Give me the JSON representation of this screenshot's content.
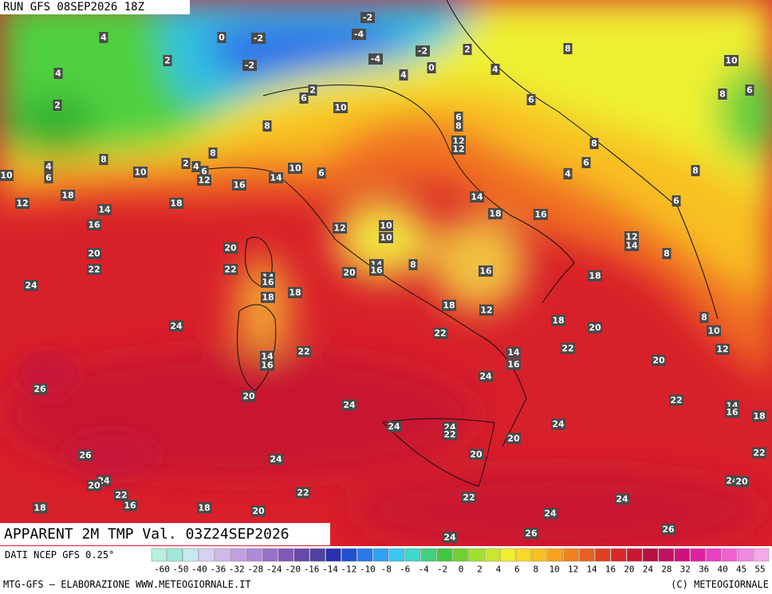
{
  "header": {
    "run": "RUN GFS 08SEP2026 18Z"
  },
  "map": {
    "title": "APPARENT 2M TMP Val. 03Z24SEP2026",
    "labels": [
      -2,
      4,
      0,
      -2,
      -4,
      -2,
      2,
      8,
      2,
      -2,
      -4,
      4,
      4,
      0,
      4,
      10,
      2,
      6,
      2,
      10,
      6,
      8,
      6,
      6,
      8,
      8,
      12,
      12,
      8,
      8,
      8,
      2,
      4,
      6,
      4,
      6,
      10,
      10,
      10,
      6,
      12,
      14,
      16,
      4,
      6,
      8,
      18,
      12,
      18,
      14,
      14,
      16,
      6,
      18,
      16,
      10,
      10,
      12,
      12,
      14,
      20,
      20,
      8,
      14,
      16,
      8,
      22,
      22,
      14,
      16,
      20,
      16,
      18,
      24,
      18,
      18,
      18,
      12,
      18,
      24,
      22,
      20,
      8,
      10,
      22,
      14,
      16,
      22,
      12,
      14,
      16,
      24,
      20,
      26,
      20,
      24,
      22,
      14,
      16,
      18,
      24,
      24,
      22,
      24,
      20,
      20,
      26,
      24,
      22,
      24,
      20,
      24,
      20,
      22,
      22,
      16,
      22,
      24,
      18,
      18,
      20,
      24,
      26,
      26,
      24
    ]
  },
  "colorbar": {
    "ticks": [
      -60,
      -50,
      -40,
      -36,
      -32,
      -28,
      -24,
      -20,
      -16,
      -14,
      -12,
      -10,
      -8,
      -6,
      -4,
      -2,
      0,
      2,
      4,
      6,
      8,
      10,
      12,
      14,
      16,
      20,
      24,
      28,
      32,
      36,
      40,
      45,
      55
    ]
  },
  "footer": {
    "source": "DATI NCEP GFS 0.25°",
    "credit": "MTG-GFS — ELABORAZIONE WWW.METEOGIORNALE.IT",
    "copyright": "(C) METEOGIORNALE"
  }
}
